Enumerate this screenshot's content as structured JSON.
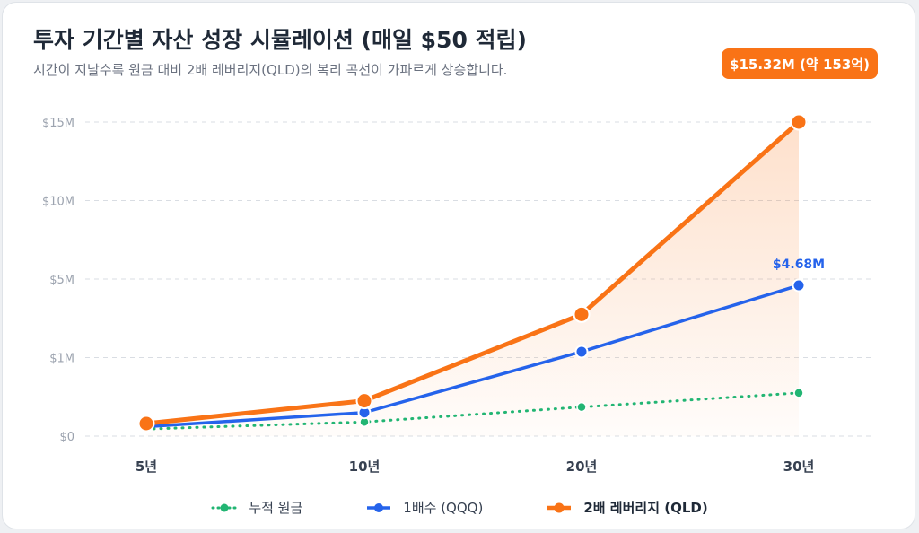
{
  "header": {
    "title": "투자 기간별 자산 성장 시뮬레이션 (매일 $50 적립)",
    "subtitle": "시간이 지날수록 원금 대비 2배 레버리지(QLD)의 복리 곡선이 가파르게 상승합니다."
  },
  "colors": {
    "principal": "#22b573",
    "qqq": "#2563eb",
    "qld": "#f97316",
    "grid": "#d9dde3",
    "tick": "#9ca3af",
    "axis_label": "#374151"
  },
  "chart_data": {
    "type": "line",
    "categories": [
      "5년",
      "10년",
      "20년",
      "30년"
    ],
    "y_ticks": [
      "$0",
      "$1M",
      "$5M",
      "$10M",
      "$15M"
    ],
    "y_tick_values_millions": [
      0,
      1,
      5,
      10,
      15
    ],
    "y_scale": "piecewise (equal spacing per tick)",
    "grid": true,
    "legend_position": "bottom-center",
    "series": [
      {
        "name": "누적 원금",
        "key": "principal",
        "style": "dotted",
        "values_millions": [
          0.09,
          0.18,
          0.37,
          0.55
        ]
      },
      {
        "name": "1배수 (QQQ)",
        "key": "qqq",
        "style": "solid",
        "values_millions": [
          0.12,
          0.3,
          1.3,
          4.68
        ]
      },
      {
        "name": "2배 레버리지 (QLD)",
        "key": "qld",
        "style": "solid-area",
        "values_millions": [
          0.16,
          0.45,
          3.2,
          15.32
        ]
      }
    ],
    "annotations": {
      "qqq_end_label": "$4.68M",
      "qld_end_label": "$15.32M (약 153억)"
    }
  }
}
